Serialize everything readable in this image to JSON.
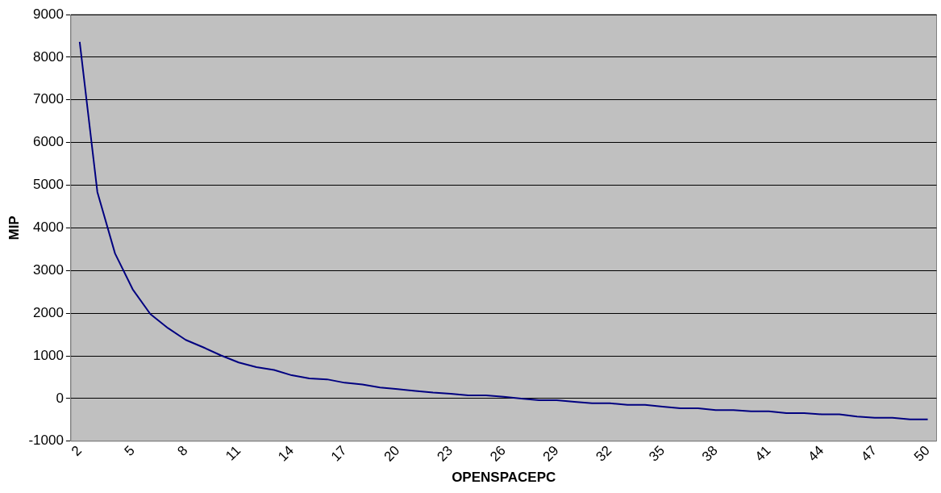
{
  "chart_data": {
    "type": "line",
    "xlabel": "OPENSPACEPC",
    "ylabel": "MIP",
    "categories": [
      "2",
      null,
      null,
      "5",
      null,
      null,
      "8",
      null,
      null,
      "11",
      null,
      null,
      "14",
      null,
      null,
      "17",
      null,
      null,
      "20",
      null,
      null,
      "23",
      null,
      null,
      "26",
      null,
      null,
      "29",
      null,
      null,
      "32",
      null,
      null,
      "35",
      null,
      null,
      "38",
      null,
      null,
      "41",
      null,
      null,
      "44",
      null,
      null,
      "47",
      null,
      null,
      "50"
    ],
    "series": [
      {
        "color": "#000080",
        "values": [
          8360,
          4840,
          3400,
          2560,
          1980,
          1650,
          1375,
          1200,
          1010,
          845,
          735,
          670,
          545,
          470,
          450,
          370,
          330,
          260,
          220,
          180,
          140,
          110,
          75,
          75,
          40,
          0,
          -40,
          -40,
          -75,
          -110,
          -110,
          -150,
          -150,
          -190,
          -230,
          -230,
          -270,
          -270,
          -300,
          -300,
          -340,
          -340,
          -370,
          -370,
          -420,
          -450,
          -450,
          -490,
          -490
        ]
      }
    ],
    "ylim": [
      -1000,
      9000
    ],
    "yticks": [
      -1000,
      0,
      1000,
      2000,
      3000,
      4000,
      5000,
      6000,
      7000,
      8000,
      9000
    ],
    "grid": "y",
    "legend": false,
    "marker": "none",
    "line_style": "solid"
  }
}
